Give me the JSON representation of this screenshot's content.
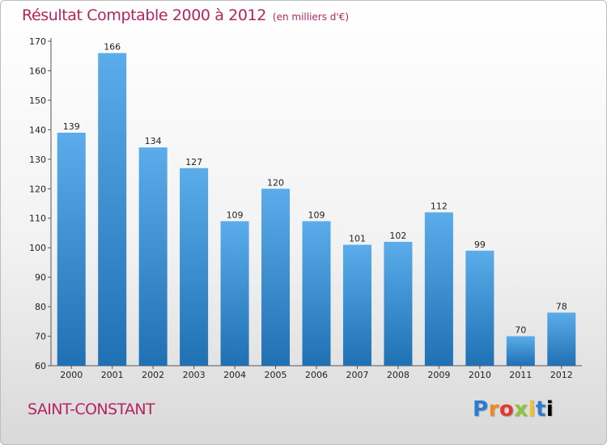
{
  "header": {
    "title": "Résultat Comptable 2000 à 2012",
    "subtitle": "(en milliers d'€)"
  },
  "footer": {
    "city": "SAINT-CONSTANT",
    "logo_letters": [
      "P",
      "r",
      "o",
      "x",
      "i",
      "t",
      "i"
    ]
  },
  "colors": {
    "accent": "#b5245e",
    "bar_top": "#5aacea",
    "bar_bottom": "#1f71b4"
  },
  "chart_data": {
    "type": "bar",
    "title": "Résultat Comptable 2000 à 2012",
    "subtitle": "(en milliers d'€)",
    "categories": [
      "2000",
      "2001",
      "2002",
      "2003",
      "2004",
      "2005",
      "2006",
      "2007",
      "2008",
      "2009",
      "2010",
      "2011",
      "2012"
    ],
    "values": [
      139,
      166,
      134,
      127,
      109,
      120,
      109,
      101,
      102,
      112,
      99,
      70,
      78
    ],
    "ylim": [
      60,
      170
    ],
    "yticks": [
      60,
      70,
      80,
      90,
      100,
      110,
      120,
      130,
      140,
      150,
      160,
      170
    ],
    "grid": false,
    "data_labels": true
  }
}
